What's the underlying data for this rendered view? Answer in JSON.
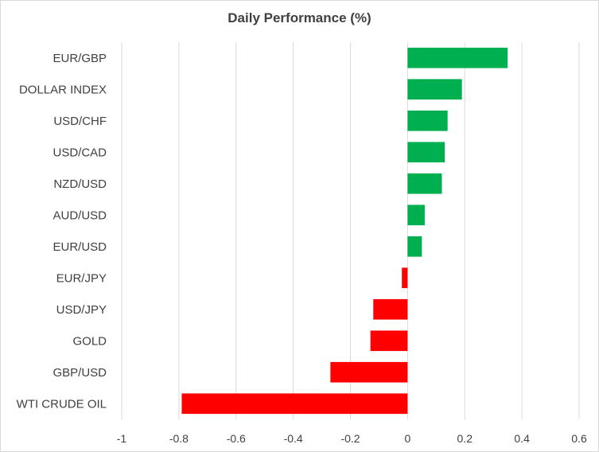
{
  "chart_data": {
    "type": "bar",
    "orientation": "horizontal",
    "title": "Daily Performance (%)",
    "xlabel": "",
    "ylabel": "",
    "categories": [
      "EUR/GBP",
      "DOLLAR INDEX",
      "USD/CHF",
      "USD/CAD",
      "NZD/USD",
      "AUD/USD",
      "EUR/USD",
      "EUR/JPY",
      "USD/JPY",
      "GOLD",
      "GBP/USD",
      "WTI CRUDE OIL"
    ],
    "values": [
      0.35,
      0.19,
      0.14,
      0.13,
      0.12,
      0.06,
      0.05,
      -0.02,
      -0.12,
      -0.13,
      -0.27,
      -0.79
    ],
    "xlim": [
      -1,
      0.6
    ],
    "xticks": [
      -1,
      -0.8,
      -0.6,
      -0.4,
      -0.2,
      0,
      0.2,
      0.4,
      0.6
    ],
    "xtick_labels": [
      "-1",
      "-0.8",
      "-0.6",
      "-0.4",
      "-0.2",
      "0",
      "0.2",
      "0.4",
      "0.6"
    ],
    "grid": "vertical",
    "legend": "none",
    "colors": {
      "positive": "#00b050",
      "negative": "#ff0000"
    }
  }
}
